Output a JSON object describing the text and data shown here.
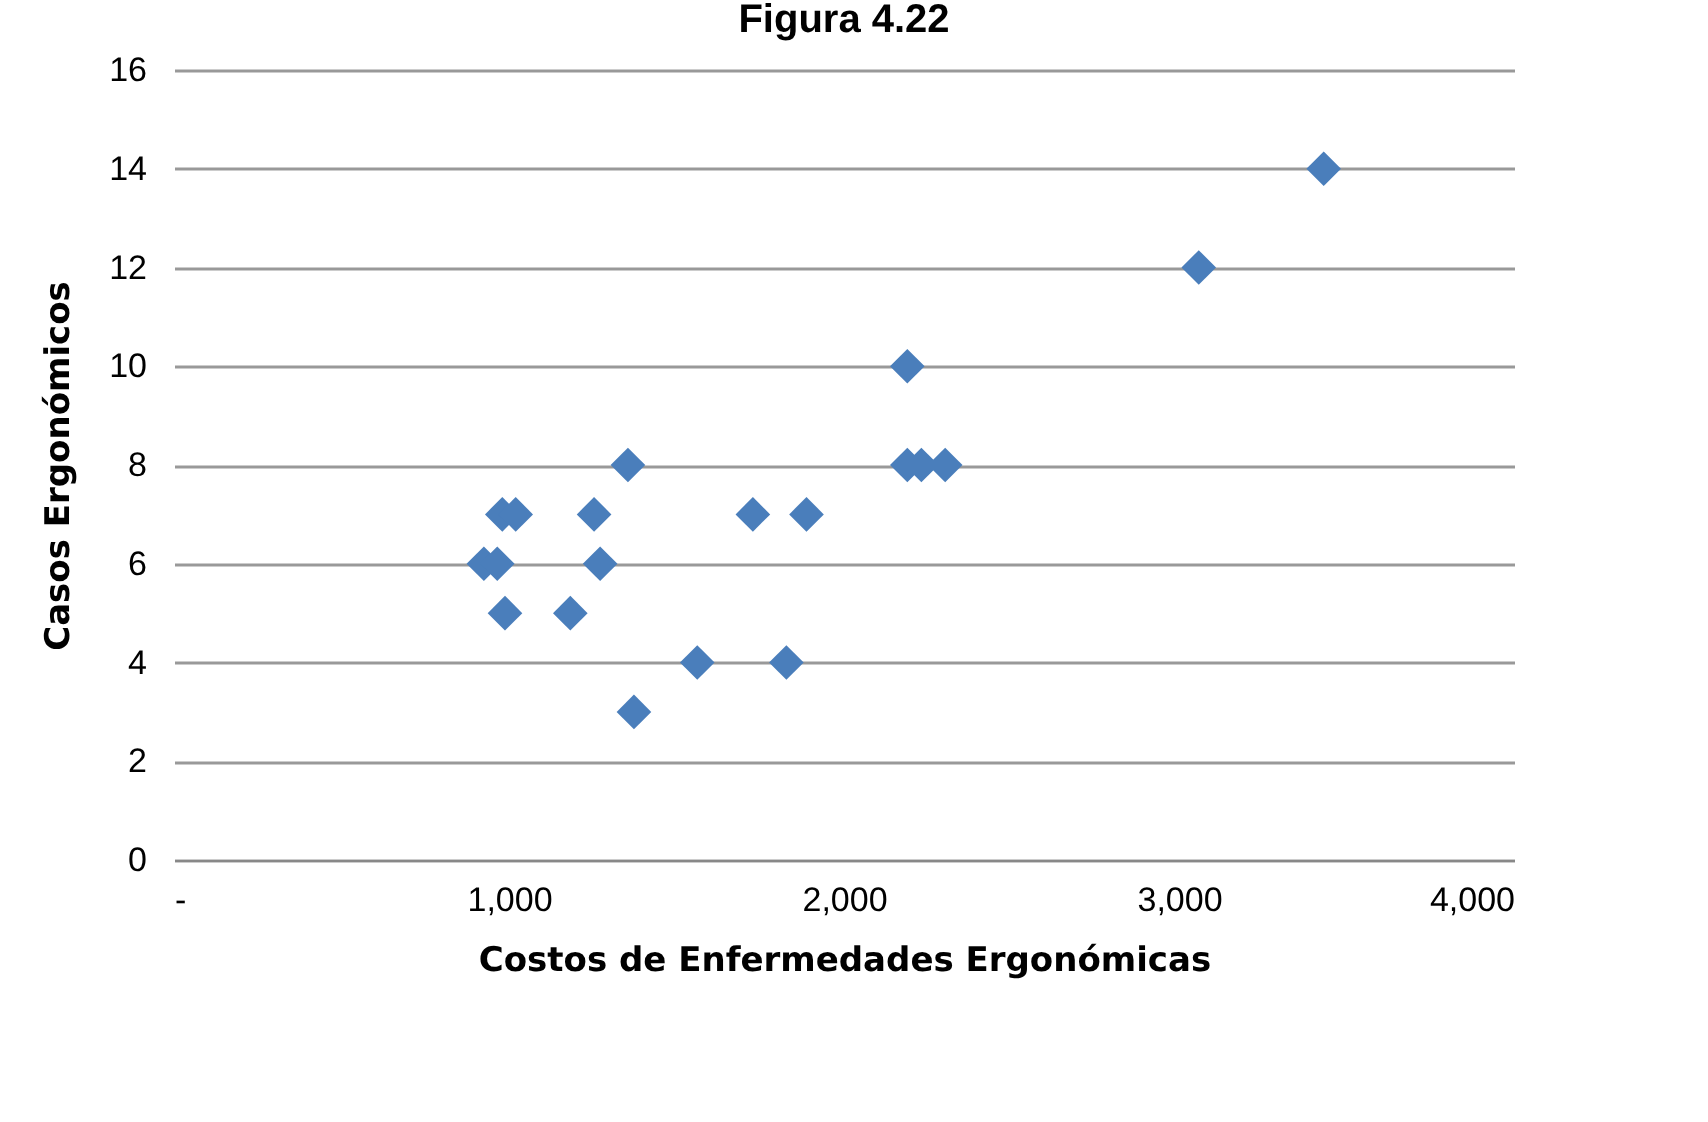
{
  "chart_data": {
    "type": "scatter",
    "title": "Figura 4.22",
    "xlabel": "Costos de Enfermedades Ergonómicas",
    "ylabel": "Casos Ergonómicos",
    "x": [
      925,
      965,
      980,
      1020,
      988,
      1355,
      1254,
      1272,
      1183,
      1373,
      1562,
      1728,
      1828,
      1888,
      2189,
      2189,
      2231,
      2302,
      3059,
      3432
    ],
    "values": [
      6,
      6,
      7,
      7,
      5,
      8,
      7,
      6,
      5,
      3,
      4,
      7,
      4,
      7,
      10,
      8,
      8,
      8,
      12,
      14
    ],
    "color": "#4a7ebb",
    "marker": "diamond",
    "grid": "y",
    "xlim": [
      0,
      4000
    ],
    "xticks": [
      {
        "value": 0,
        "label": "-"
      },
      {
        "value": 1000,
        "label": "1,000"
      },
      {
        "value": 2000,
        "label": "2,000"
      },
      {
        "value": 3000,
        "label": "3,000"
      },
      {
        "value": 4000,
        "label": "4,000"
      }
    ],
    "ylim": [
      0,
      16
    ],
    "yticks": [
      0,
      2,
      4,
      6,
      8,
      10,
      12,
      14,
      16
    ]
  }
}
